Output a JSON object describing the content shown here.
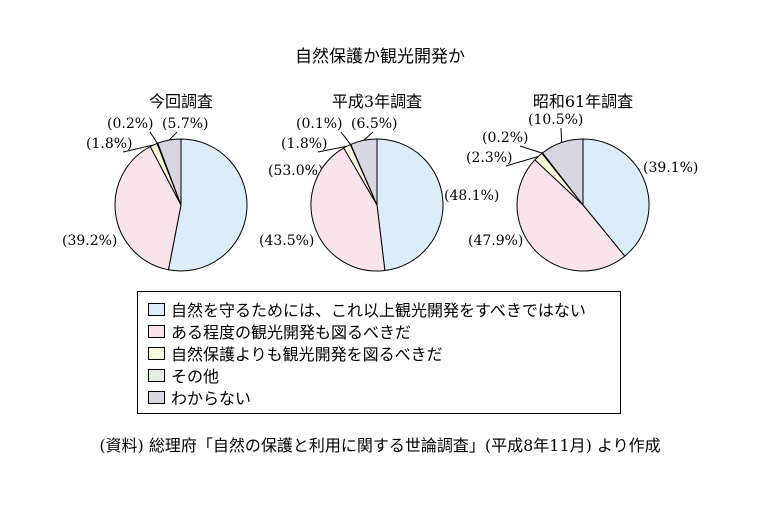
{
  "title": "自然保護か観光開発か",
  "legend": [
    {
      "label": "自然を守るためには、これ以上観光開発をすべきではない",
      "color": "#dcecf8"
    },
    {
      "label": "ある程度の観光開発も図るべきだ",
      "color": "#f8e4ea"
    },
    {
      "label": "自然保護よりも観光開発を図るべきだ",
      "color": "#fbf8dc"
    },
    {
      "label": "その他",
      "color": "#e2f0e0"
    },
    {
      "label": "わからない",
      "color": "#d9d6e4"
    }
  ],
  "source": "(資料) 総理府「自然の保護と利用に関する世論調査」(平成8年11月) より作成",
  "chart_data": [
    {
      "type": "pie",
      "title": "今回調査",
      "categories": [
        "自然を守るためには、これ以上観光開発をすべきではない",
        "ある程度の観光開発も図るべきだ",
        "自然保護よりも観光開発を図るべきだ",
        "その他",
        "わからない"
      ],
      "values": [
        53.0,
        39.2,
        1.8,
        0.2,
        5.7
      ],
      "labels": [
        "(53.0%)",
        "(39.2%)",
        "(1.8%)",
        "(0.2%)",
        "(5.7%)"
      ]
    },
    {
      "type": "pie",
      "title": "平成3年調査",
      "categories": [
        "自然を守るためには、これ以上観光開発をすべきではない",
        "ある程度の観光開発も図るべきだ",
        "自然保護よりも観光開発を図るべきだ",
        "その他",
        "わからない"
      ],
      "values": [
        48.1,
        43.5,
        1.8,
        0.1,
        6.5
      ],
      "labels": [
        "(48.1%)",
        "(43.5%)",
        "(1.8%)",
        "(0.1%)",
        "(6.5%)"
      ]
    },
    {
      "type": "pie",
      "title": "昭和61年調査",
      "categories": [
        "自然を守るためには、これ以上観光開発をすべきではない",
        "ある程度の観光開発も図るべきだ",
        "自然保護よりも観光開発を図るべきだ",
        "その他",
        "わからない"
      ],
      "values": [
        39.1,
        47.9,
        2.3,
        0.2,
        10.5
      ],
      "labels": [
        "(39.1%)",
        "(47.9%)",
        "(2.3%)",
        "(0.2%)",
        "(10.5%)"
      ]
    }
  ]
}
